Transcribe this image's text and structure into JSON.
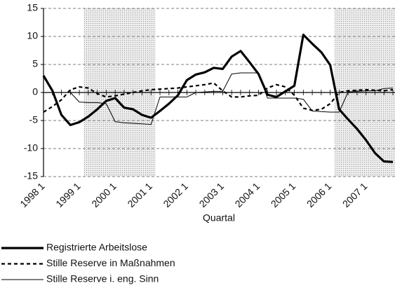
{
  "chart_data": {
    "type": "line",
    "x_label": "Quartal",
    "categories": [
      "1998 1",
      null,
      null,
      null,
      "1999 1",
      null,
      null,
      null,
      "2000 1",
      null,
      null,
      null,
      "2001 1",
      null,
      null,
      null,
      "2002 1",
      null,
      null,
      null,
      "2003 1",
      null,
      null,
      null,
      "2004 1",
      null,
      null,
      null,
      "2005 1",
      null,
      null,
      null,
      "2006 1",
      null,
      null,
      null,
      "2007 1",
      null,
      null,
      null
    ],
    "series": [
      {
        "name": "Registrierte Arbeitslose",
        "color": "#000000",
        "style": "thick",
        "values": [
          3,
          0.3,
          -4,
          -5.8,
          -5.3,
          -4.3,
          -3,
          -1.5,
          -1,
          -2.7,
          -3,
          -4,
          -4.5,
          -3.3,
          -2,
          -0.5,
          2.2,
          3.2,
          3.6,
          4.4,
          4.2,
          6.4,
          7.4,
          5.4,
          3.3,
          -0.4,
          -0.8,
          0.2,
          1.2,
          10.3,
          8.7,
          7.2,
          4.9,
          -3,
          -4.8,
          -6.5,
          -8.5,
          -10.8,
          -12.3,
          -12.4
        ]
      },
      {
        "name": "Stille Reserve in Maßnahmen",
        "color": "#000000",
        "style": "dashed",
        "values": [
          -3.5,
          -2.5,
          -1.3,
          0.5,
          1,
          0.8,
          -0.2,
          -0.8,
          -0.6,
          -0.3,
          0,
          0.3,
          0.5,
          0.6,
          0.7,
          0.8,
          1,
          1.2,
          1.4,
          1.7,
          0.3,
          -0.8,
          -0.8,
          -0.6,
          -0.5,
          0.8,
          1.4,
          1,
          -0.5,
          -2.8,
          -3.2,
          -3,
          -2,
          0,
          0.3,
          0.4,
          0.5,
          0.4,
          0.3,
          0.5
        ]
      },
      {
        "name": "Stille Reserve i. eng. Sinn",
        "color": "#000000",
        "style": "thin",
        "values": [
          0,
          0,
          0,
          0,
          -1.7,
          -1.8,
          -1.8,
          -2,
          -5.2,
          -5.4,
          -5.5,
          -5.6,
          -5.7,
          -0.8,
          -0.8,
          -0.8,
          -0.8,
          0,
          0.1,
          0.2,
          0.2,
          3.3,
          3.5,
          3.5,
          3.5,
          -1,
          -1,
          -1,
          -1,
          -1.2,
          -3.3,
          -3.4,
          -3.5,
          -3.5,
          0.1,
          0.2,
          0.3,
          0.3,
          0.7,
          0.8
        ]
      }
    ],
    "ylim": [
      -15,
      15
    ],
    "yticks": [
      -15,
      -10,
      -5,
      0,
      5,
      10,
      15
    ],
    "grid": true,
    "shaded": [
      {
        "from": 5,
        "to": 12
      },
      {
        "from": 33,
        "to": 39
      }
    ],
    "legend": "bottom"
  }
}
